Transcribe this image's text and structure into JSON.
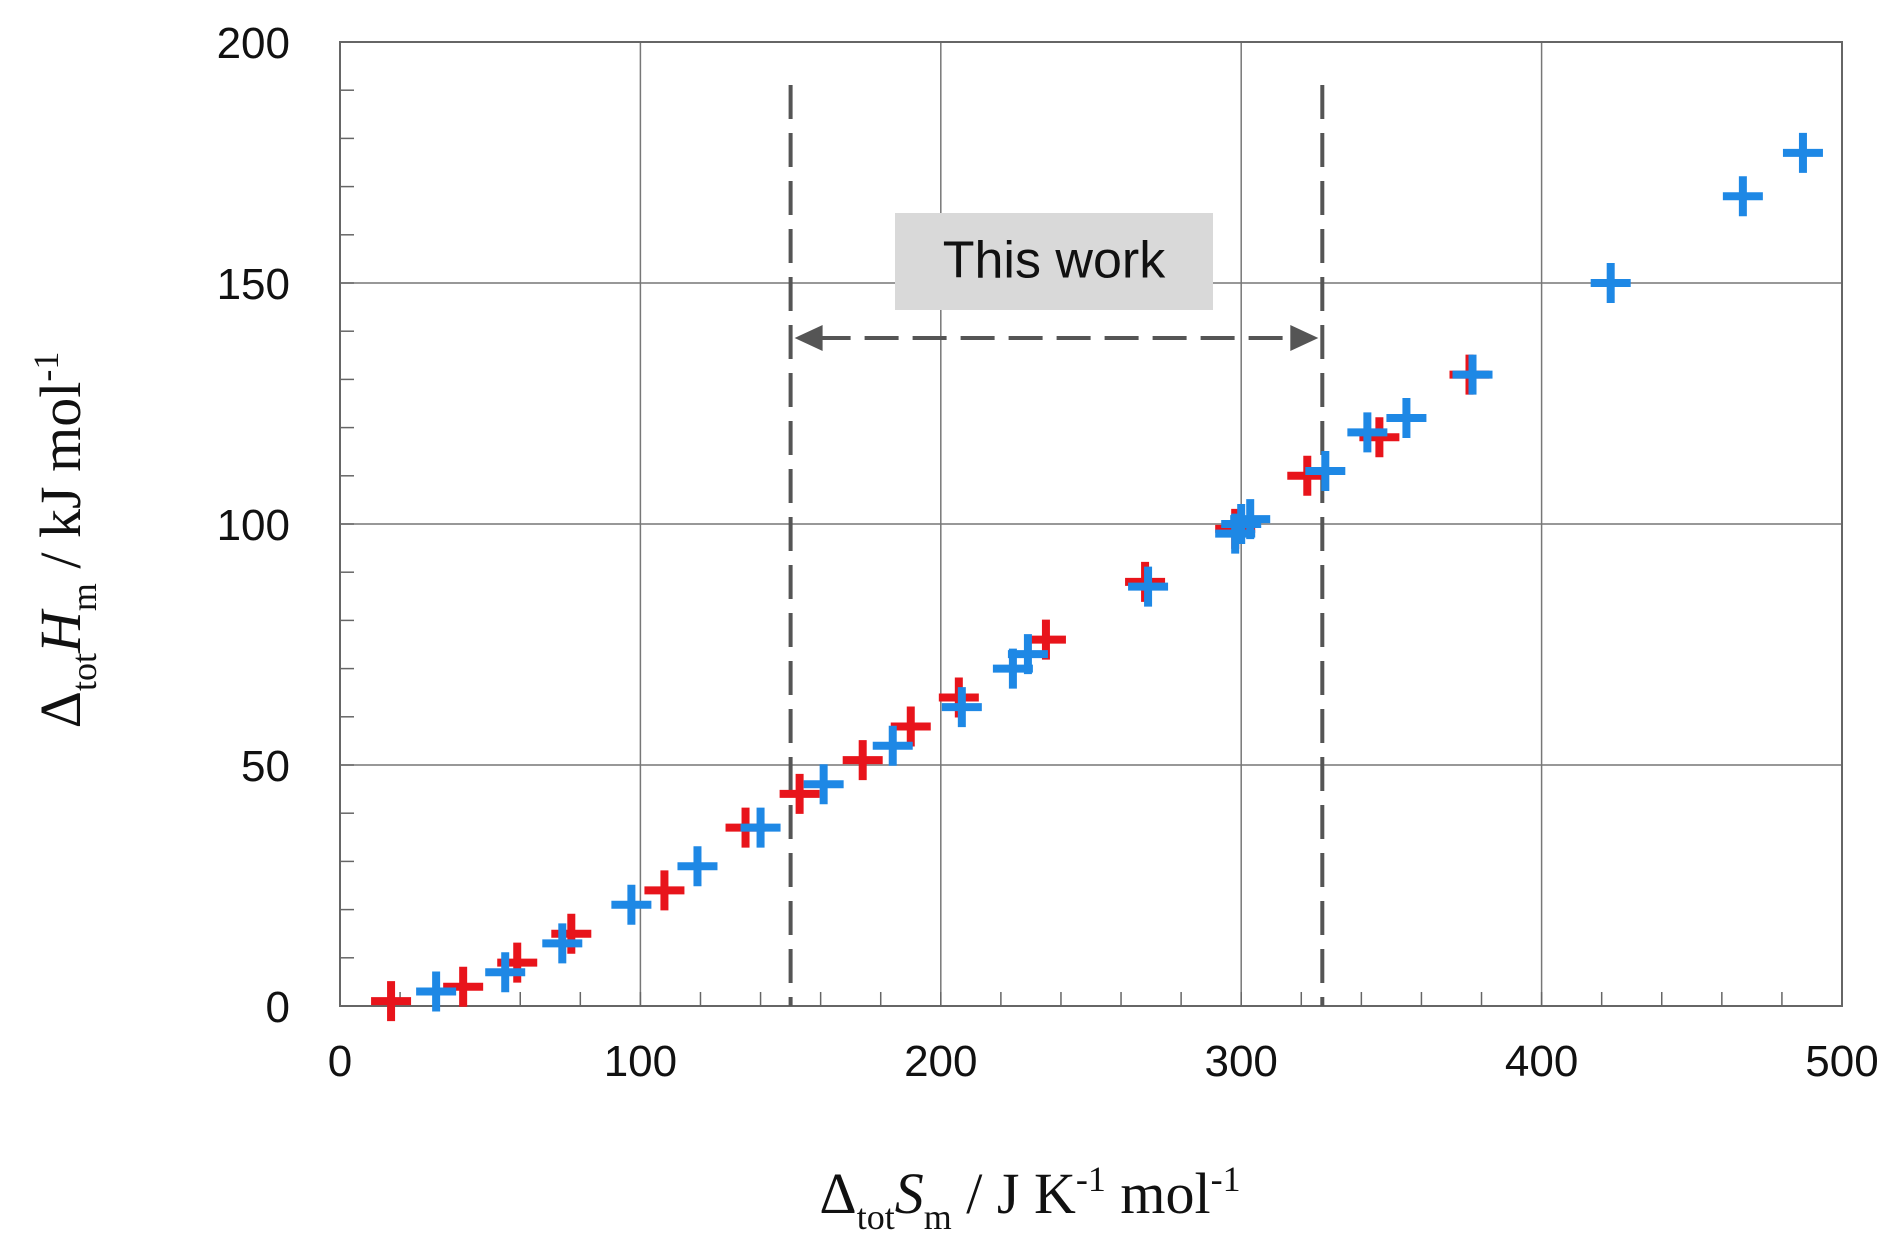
{
  "chart_data": {
    "type": "scatter",
    "title": "",
    "xlabel": {
      "prefix": "Δ",
      "sub1": "tot",
      "symbol": "S",
      "sub2": "m",
      "units_a": " / J K",
      "sup": "-1",
      "units_b": " mol",
      "sup2": "-1"
    },
    "ylabel": {
      "prefix": "Δ",
      "sub1": "tot",
      "symbol": "H",
      "sub2": "m",
      "units": " / kJ mol",
      "sup": "-1"
    },
    "xlim": [
      0,
      500
    ],
    "ylim": [
      0,
      200
    ],
    "x_ticks": [
      0,
      100,
      200,
      300,
      400,
      500
    ],
    "y_ticks": [
      0,
      50,
      100,
      150,
      200
    ],
    "x_tick_labels": [
      "0",
      "100",
      "200",
      "300",
      "400",
      "500"
    ],
    "y_tick_labels": [
      "0",
      "50",
      "100",
      "150",
      "200"
    ],
    "grid": true,
    "annotation": {
      "text": "This work",
      "x_range": [
        150,
        327
      ]
    },
    "series": [
      {
        "color": "#e8141b",
        "points": [
          [
            17,
            1
          ],
          [
            41,
            4
          ],
          [
            59,
            9
          ],
          [
            77,
            15
          ],
          [
            108,
            24
          ],
          [
            135,
            37
          ],
          [
            153,
            44
          ],
          [
            174,
            51
          ],
          [
            190,
            58
          ],
          [
            206,
            64
          ],
          [
            235,
            76
          ],
          [
            268,
            88
          ],
          [
            298,
            99
          ],
          [
            322,
            110
          ],
          [
            346,
            118
          ],
          [
            376,
            131
          ]
        ]
      },
      {
        "color": "#1e88e5",
        "points": [
          [
            32,
            3
          ],
          [
            55,
            7
          ],
          [
            74,
            13
          ],
          [
            97,
            21
          ],
          [
            119,
            29
          ],
          [
            140,
            37
          ],
          [
            161,
            46
          ],
          [
            184,
            54
          ],
          [
            207,
            62
          ],
          [
            224,
            70
          ],
          [
            229,
            73
          ],
          [
            269,
            87
          ],
          [
            298,
            98
          ],
          [
            300,
            100
          ],
          [
            303,
            101
          ],
          [
            328,
            111
          ],
          [
            342,
            119
          ],
          [
            355,
            122
          ],
          [
            377,
            131
          ],
          [
            423,
            150
          ],
          [
            467,
            168
          ],
          [
            487,
            177
          ]
        ]
      }
    ]
  }
}
